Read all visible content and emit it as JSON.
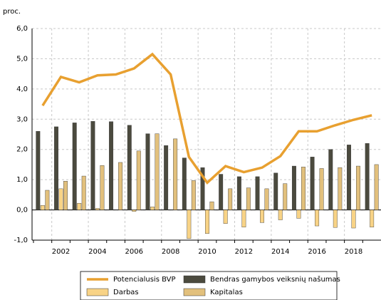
{
  "chart_data": {
    "type": "bar",
    "y_label": "proc.",
    "categories": [
      null,
      "2002",
      null,
      "2004",
      null,
      "2006",
      null,
      "2008",
      null,
      "2010",
      null,
      "2012",
      null,
      "2014",
      null,
      "2016",
      null,
      "2018",
      null
    ],
    "series": [
      {
        "name": "Bendras gamybos veiksnių našumas",
        "color": "#4b4a3e",
        "values": [
          2.6,
          2.75,
          2.88,
          2.93,
          2.92,
          2.8,
          2.52,
          2.13,
          1.72,
          1.4,
          1.18,
          1.1,
          1.1,
          1.22,
          1.45,
          1.75,
          2.0,
          2.15,
          2.2
        ]
      },
      {
        "name": "Darbas",
        "color": "#f8d386",
        "values": [
          0.15,
          0.7,
          0.22,
          0.05,
          0,
          -0.05,
          0.1,
          0,
          -0.95,
          -0.78,
          -0.45,
          -0.57,
          -0.42,
          -0.33,
          -0.28,
          -0.53,
          -0.58,
          -0.6,
          -0.57
        ]
      },
      {
        "name": "Kapitalas",
        "color": "#e2c07c",
        "values": [
          0.65,
          0.95,
          1.12,
          1.47,
          1.57,
          1.95,
          2.52,
          2.35,
          0.97,
          0.27,
          0.7,
          0.73,
          0.7,
          0.87,
          1.42,
          1.37,
          1.4,
          1.45,
          1.5
        ]
      },
      {
        "name": "Potencialusis BVP",
        "type": "line",
        "color": "#e8a030",
        "values": [
          3.45,
          4.4,
          4.22,
          4.45,
          4.48,
          4.68,
          5.15,
          4.48,
          1.75,
          0.9,
          1.45,
          1.25,
          1.4,
          1.78,
          2.6,
          2.6,
          2.8,
          2.98,
          3.13
        ]
      }
    ],
    "ylim": [
      -1,
      6
    ],
    "yticks": [
      {
        "value": -1,
        "label": "-1,0"
      },
      {
        "value": 0,
        "label": "0,0"
      },
      {
        "value": 1,
        "label": "1,0"
      },
      {
        "value": 2,
        "label": "2,0"
      },
      {
        "value": 3,
        "label": "3,0"
      },
      {
        "value": 4,
        "label": "4,0"
      },
      {
        "value": 5,
        "label": "5,0"
      },
      {
        "value": 6,
        "label": "6,0"
      }
    ],
    "grid": true
  }
}
